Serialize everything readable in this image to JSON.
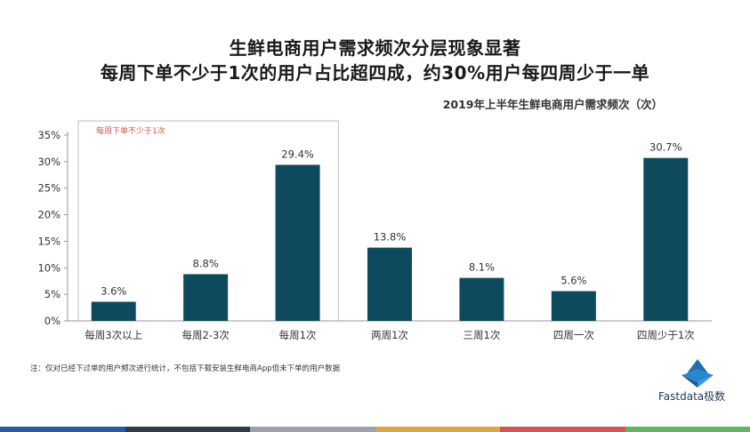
{
  "title_line1": "生鲜电商用户需求频次分层现象显著",
  "title_line2": "每周下单不少于1次的用户占比超四成，约30%用户每四周少于一单",
  "footnote": "注：仅对已经下过单的用户频次进行统计，不包括下载安装生鲜电商App但未下单的用户数据",
  "logo_text": "Fastdata极数",
  "bottom_bar_colors": [
    "#1e5fa8",
    "#2e3a4a",
    "#9aa3ad",
    "#e0a640",
    "#d9534f",
    "#5cb85c"
  ],
  "chart_data": {
    "type": "bar",
    "title": "2019年上半年生鲜电商用户需求频次（次）",
    "categories": [
      "每周3次以上",
      "每周2-3次",
      "每周1次",
      "两周1次",
      "三周1次",
      "四周一次",
      "四周少于1次"
    ],
    "values": [
      3.6,
      8.8,
      29.4,
      13.8,
      8.1,
      5.6,
      30.7
    ],
    "value_labels": [
      "3.6%",
      "8.8%",
      "29.4%",
      "13.8%",
      "8.1%",
      "5.6%",
      "30.7%"
    ],
    "y_ticks": [
      "0%",
      "5%",
      "10%",
      "15%",
      "20%",
      "25%",
      "30%",
      "35%"
    ],
    "ylim": [
      0,
      35
    ],
    "bar_color": "#0e4a5e",
    "grid": false,
    "annotation": {
      "label": "每周下单不少于1次",
      "covers_categories": [
        0,
        1,
        2
      ],
      "color": "#d9534f"
    }
  }
}
